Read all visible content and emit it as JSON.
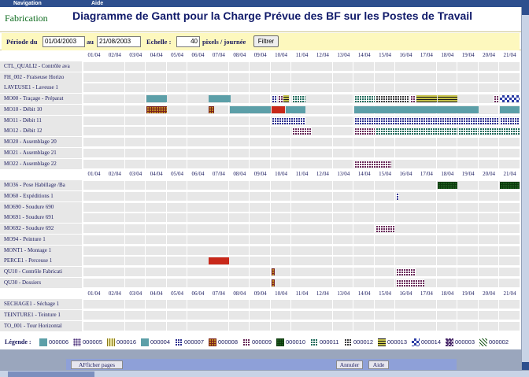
{
  "menu": {
    "navigation": "Navigation",
    "aide": "Aide"
  },
  "header": {
    "app_name": "Fabrication",
    "title": "Diagramme de Gantt pour la Charge Prévue des BF sur les Postes de Travail"
  },
  "filter": {
    "period_label": "Période du",
    "date_from": "01/04/2003",
    "to_label": "au",
    "date_to": "21/08/2003",
    "scale_label": "Echelle :",
    "scale_value": "40",
    "scale_unit": "pixels / journée",
    "filter_button": "Filtrer"
  },
  "dates": [
    "01/04",
    "02/04",
    "03/04",
    "04/04",
    "05/04",
    "06/04",
    "07/04",
    "08/04",
    "09/04",
    "10/04",
    "11/04",
    "12/04",
    "13/04",
    "14/04",
    "15/04",
    "16/04",
    "17/04",
    "18/04",
    "19/04",
    "20/04",
    "21/04"
  ],
  "rows": [
    {
      "type": "dates"
    },
    {
      "type": "res",
      "label": "CTL_QUALI2 - Contrôle ava"
    },
    {
      "type": "res",
      "label": "FH_002 - Fraiseuse Horizo"
    },
    {
      "type": "res",
      "label": "LAVEUSE1 - Laveuse 1"
    },
    {
      "type": "res",
      "label": "MO00 - Traçage - Préparat",
      "bars": [
        {
          "d": 3,
          "w": 1,
          "p": "p04"
        },
        {
          "d": 6,
          "w": 1.1,
          "p": "p04"
        },
        {
          "d": 9,
          "w": 0.3,
          "p": "p07"
        },
        {
          "d": 9.3,
          "w": 0.3,
          "p": "p09"
        },
        {
          "d": 9.6,
          "w": 0.3,
          "p": "p13"
        },
        {
          "d": 10,
          "w": 0.7,
          "p": "p11"
        },
        {
          "d": 13,
          "w": 1,
          "p": "p11"
        },
        {
          "d": 14,
          "w": 1.7,
          "p": "p12"
        },
        {
          "d": 15.7,
          "w": 0.3,
          "p": "p09"
        },
        {
          "d": 16,
          "w": 1,
          "p": "p13"
        },
        {
          "d": 17,
          "w": 1,
          "p": "p13"
        },
        {
          "d": 19.7,
          "w": 0.3,
          "p": "p09"
        },
        {
          "d": 20,
          "w": 1,
          "p": "p14"
        }
      ]
    },
    {
      "type": "res",
      "label": "MO10 - Débit 10",
      "bars": [
        {
          "d": 3,
          "w": 1,
          "p": "p08"
        },
        {
          "d": 6,
          "w": 0.3,
          "p": "p08"
        },
        {
          "d": 7,
          "w": 2,
          "p": "p04"
        },
        {
          "d": 9,
          "w": 0.7,
          "p": "red"
        },
        {
          "d": 9.7,
          "w": 1,
          "p": "p04"
        },
        {
          "d": 13,
          "w": 6,
          "p": "p04"
        },
        {
          "d": 20,
          "w": 1,
          "p": "p04"
        }
      ]
    },
    {
      "type": "res",
      "label": "MO11 - Débit 11",
      "bars": [
        {
          "d": 9,
          "w": 1.7,
          "p": "p07"
        },
        {
          "d": 13,
          "w": 7,
          "p": "p07"
        },
        {
          "d": 20,
          "w": 1,
          "p": "p07"
        }
      ]
    },
    {
      "type": "res",
      "label": "MO12 - Débit 12",
      "bars": [
        {
          "d": 10,
          "w": 1,
          "p": "p09"
        },
        {
          "d": 13,
          "w": 1,
          "p": "p09"
        },
        {
          "d": 14,
          "w": 4,
          "p": "p11"
        },
        {
          "d": 18,
          "w": 1,
          "p": "p11"
        },
        {
          "d": 19,
          "w": 2,
          "p": "p11"
        }
      ]
    },
    {
      "type": "res",
      "label": "MO20 - Assemblage 20"
    },
    {
      "type": "res",
      "label": "MO21 - Assemblage 21"
    },
    {
      "type": "res",
      "label": "MO22 - Assemblage 22",
      "bars": [
        {
          "d": 13,
          "w": 1.8,
          "p": "p09"
        }
      ]
    },
    {
      "type": "dates"
    },
    {
      "type": "res",
      "label": "MO36 - Pose Habillage /Ba",
      "bars": [
        {
          "d": 17,
          "w": 1,
          "p": "p10"
        },
        {
          "d": 20,
          "w": 1,
          "p": "p10"
        }
      ]
    },
    {
      "type": "res",
      "label": "MO60 - Expéditions 1",
      "bars": [
        {
          "d": 15,
          "w": 0.2,
          "p": "p07"
        }
      ]
    },
    {
      "type": "res",
      "label": "MO690 - Soudure 690"
    },
    {
      "type": "res",
      "label": "MO691 - Soudure 691"
    },
    {
      "type": "res",
      "label": "MO692 - Soudure 692",
      "bars": [
        {
          "d": 14,
          "w": 1,
          "p": "p09"
        }
      ]
    },
    {
      "type": "res",
      "label": "MO94 - Peinture 1"
    },
    {
      "type": "res",
      "label": "MONT1 - Montage 1"
    },
    {
      "type": "res",
      "label": "PERCE1 - Perceuse 1",
      "bars": [
        {
          "d": 6,
          "w": 1,
          "p": "red"
        }
      ]
    },
    {
      "type": "res",
      "label": "QU10 - Contrôle Fabricati",
      "bars": [
        {
          "d": 9,
          "w": 0.2,
          "p": "p08"
        },
        {
          "d": 15,
          "w": 1,
          "p": "p09"
        }
      ]
    },
    {
      "type": "res",
      "label": "QU30 - Dossiers",
      "bars": [
        {
          "d": 9,
          "w": 0.2,
          "p": "p08"
        },
        {
          "d": 15,
          "w": 1.4,
          "p": "p09"
        }
      ]
    },
    {
      "type": "dates"
    },
    {
      "type": "res",
      "label": "SECHAGE1 - Séchage 1"
    },
    {
      "type": "res",
      "label": "TEINTURE1 - Teinture 1"
    },
    {
      "type": "res",
      "label": "TO_001 - Tour Horizontal"
    }
  ],
  "legend": {
    "label": "Légende :",
    "items": [
      {
        "code": "000006",
        "p": "p06"
      },
      {
        "code": "000005",
        "p": "p05"
      },
      {
        "code": "000016",
        "p": "p16"
      },
      {
        "code": "000004",
        "p": "p04"
      },
      {
        "code": "000007",
        "p": "p07"
      },
      {
        "code": "000008",
        "p": "p08"
      },
      {
        "code": "000009",
        "p": "p09"
      },
      {
        "code": "000010",
        "p": "p10"
      },
      {
        "code": "000011",
        "p": "p11"
      },
      {
        "code": "000012",
        "p": "p12"
      },
      {
        "code": "000013",
        "p": "p13"
      },
      {
        "code": "000014",
        "p": "p14"
      },
      {
        "code": "000003",
        "p": "p03"
      },
      {
        "code": "000002",
        "p": "p02"
      }
    ]
  },
  "footer": {
    "print_button": "AFficher pages",
    "cancel_button": "Annuler",
    "help_button": "Aide"
  },
  "colors": {
    "menubar": "#2e4f8e",
    "title": "#101a6a",
    "app_name": "#0d6b1e",
    "filter_bg": "#fdf8be",
    "grid_cell": "#e7e7e7",
    "footer": "#8ea0d8",
    "red": "#c8281a",
    "teal": "#5c9fa8"
  }
}
